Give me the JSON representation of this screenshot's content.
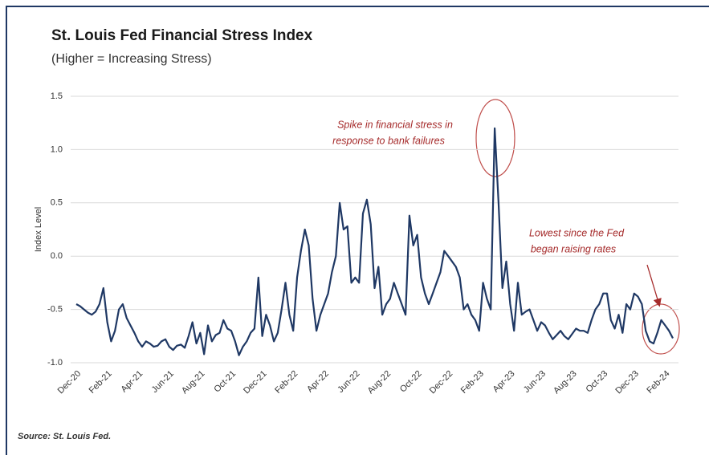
{
  "chart_data": {
    "type": "line",
    "title": "St. Louis Fed Financial Stress Index",
    "subtitle": "(Higher = Increasing Stress)",
    "y_label": "Index Level",
    "source": "Source: St. Louis Fed.",
    "annotations": [
      [
        "Spike in financial stress in",
        "response to bank failures"
      ],
      [
        "Lowest since the Fed",
        "began raising rates"
      ]
    ],
    "categories": [
      "Dec-20",
      null,
      null,
      null,
      null,
      null,
      null,
      null,
      "Feb-21",
      null,
      null,
      null,
      null,
      null,
      null,
      null,
      "Apr-21",
      null,
      null,
      null,
      null,
      null,
      null,
      null,
      "Jun-21",
      null,
      null,
      null,
      null,
      null,
      null,
      null,
      "Aug-21",
      null,
      null,
      null,
      null,
      null,
      null,
      null,
      "Oct-21",
      null,
      null,
      null,
      null,
      null,
      null,
      null,
      "Dec-21",
      null,
      null,
      null,
      null,
      null,
      null,
      null,
      "Feb-22",
      null,
      null,
      null,
      null,
      null,
      null,
      null,
      "Apr-22",
      null,
      null,
      null,
      null,
      null,
      null,
      null,
      "Jun-22",
      null,
      null,
      null,
      null,
      null,
      null,
      null,
      "Aug-22",
      null,
      null,
      null,
      null,
      null,
      null,
      null,
      "Oct-22",
      null,
      null,
      null,
      null,
      null,
      null,
      null,
      "Dec-22",
      null,
      null,
      null,
      null,
      null,
      null,
      null,
      "Feb-23",
      null,
      null,
      null,
      null,
      null,
      null,
      null,
      "Apr-23",
      null,
      null,
      null,
      null,
      null,
      null,
      null,
      "Jun-23",
      null,
      null,
      null,
      null,
      null,
      null,
      null,
      "Aug-23",
      null,
      null,
      null,
      null,
      null,
      null,
      null,
      "Oct-23",
      null,
      null,
      null,
      null,
      null,
      null,
      null,
      "Dec-23",
      null,
      null,
      null,
      null,
      null,
      null,
      null,
      "Feb-24",
      null,
      null
    ],
    "series": [
      {
        "name": "Index Level",
        "color": "#1f3864",
        "values": [
          -0.45,
          -0.47,
          -0.5,
          -0.53,
          -0.55,
          -0.52,
          -0.45,
          -0.3,
          -0.62,
          -0.8,
          -0.7,
          -0.5,
          -0.45,
          -0.58,
          -0.65,
          -0.72,
          -0.8,
          -0.85,
          -0.8,
          -0.82,
          -0.85,
          -0.84,
          -0.8,
          -0.78,
          -0.85,
          -0.88,
          -0.84,
          -0.83,
          -0.86,
          -0.75,
          -0.62,
          -0.82,
          -0.72,
          -0.92,
          -0.65,
          -0.8,
          -0.74,
          -0.72,
          -0.6,
          -0.68,
          -0.7,
          -0.8,
          -0.93,
          -0.85,
          -0.8,
          -0.72,
          -0.68,
          -0.2,
          -0.75,
          -0.55,
          -0.65,
          -0.8,
          -0.72,
          -0.5,
          -0.25,
          -0.55,
          -0.7,
          -0.2,
          0.05,
          0.25,
          0.1,
          -0.4,
          -0.7,
          -0.55,
          -0.45,
          -0.35,
          -0.15,
          0.0,
          0.5,
          0.25,
          0.28,
          -0.25,
          -0.2,
          -0.25,
          0.4,
          0.53,
          0.3,
          -0.3,
          -0.1,
          -0.55,
          -0.45,
          -0.4,
          -0.25,
          -0.35,
          -0.45,
          -0.55,
          0.38,
          0.1,
          0.2,
          -0.2,
          -0.35,
          -0.45,
          -0.35,
          -0.25,
          -0.15,
          0.05,
          0.0,
          -0.05,
          -0.1,
          -0.2,
          -0.5,
          -0.45,
          -0.55,
          -0.6,
          -0.7,
          -0.25,
          -0.4,
          -0.5,
          1.2,
          0.5,
          -0.3,
          -0.05,
          -0.45,
          -0.7,
          -0.25,
          -0.55,
          -0.52,
          -0.5,
          -0.6,
          -0.7,
          -0.62,
          -0.65,
          -0.72,
          -0.78,
          -0.74,
          -0.7,
          -0.75,
          -0.78,
          -0.73,
          -0.68,
          -0.7,
          -0.7,
          -0.72,
          -0.6,
          -0.5,
          -0.45,
          -0.35,
          -0.35,
          -0.6,
          -0.68,
          -0.55,
          -0.72,
          -0.45,
          -0.5,
          -0.35,
          -0.38,
          -0.45,
          -0.7,
          -0.8,
          -0.82,
          -0.72,
          -0.6,
          -0.65,
          -0.7,
          -0.77
        ]
      }
    ],
    "ylim": [
      -1.0,
      1.5
    ],
    "yticks": [
      {
        "value": -1.0,
        "label": "-1.0"
      },
      {
        "value": -0.5,
        "label": "-0.5"
      },
      {
        "value": 0,
        "label": "0.0"
      },
      {
        "value": 0.5,
        "label": "0.5"
      },
      {
        "value": 1.0,
        "label": "1.0"
      },
      {
        "value": 1.5,
        "label": "1.5"
      }
    ],
    "grid": true
  }
}
